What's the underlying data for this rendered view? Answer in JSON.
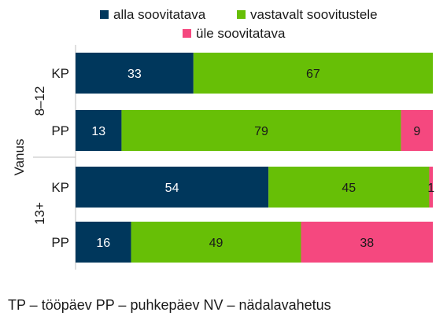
{
  "chart_data": {
    "type": "bar",
    "orientation": "horizontal",
    "stacked": true,
    "y_axis_title": "Vanus",
    "groups": [
      {
        "name": "8–12",
        "rows": [
          "KP",
          "PP"
        ]
      },
      {
        "name": "13+",
        "rows": [
          "KP",
          "PP"
        ]
      }
    ],
    "categories": [
      "KP",
      "PP",
      "KP",
      "PP"
    ],
    "series": [
      {
        "name": "alla soovitatava",
        "color": "#00375c",
        "values": [
          33,
          13,
          54,
          16
        ],
        "labels": [
          "33",
          "13",
          "54",
          "16"
        ]
      },
      {
        "name": "vastavalt soovitustele",
        "color": "#67bf06",
        "values": [
          67,
          79,
          45,
          49
        ],
        "labels": [
          "67",
          "79",
          "45",
          "49"
        ]
      },
      {
        "name": "üle soovitatava",
        "color": "#f5487f",
        "values": [
          0,
          9,
          1,
          38
        ],
        "labels": [
          "",
          "9",
          "1",
          "38"
        ]
      }
    ],
    "legend_position": "top",
    "grid": false
  },
  "footnote": "TP – tööpäev  PP – puhkepäev  NV – nädalavahetus"
}
